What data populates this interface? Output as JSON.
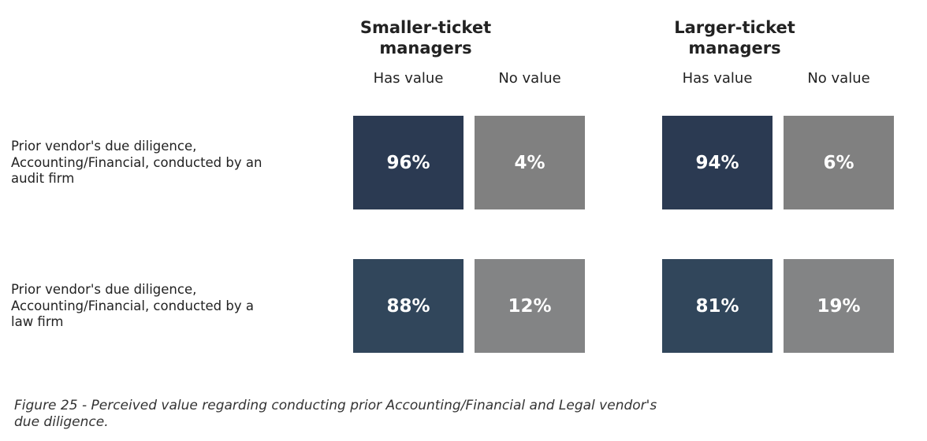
{
  "chart_data": {
    "type": "heatmap",
    "groups": [
      "Smaller-ticket managers",
      "Larger-ticket managers"
    ],
    "columns": [
      "Has value",
      "No value"
    ],
    "rows": [
      "Prior vendor's due diligence, Accounting/Financial, conducted by an audit firm",
      "Prior vendor's due diligence, Accounting/Financial, conducted by a law firm"
    ],
    "values": [
      [
        [
          96,
          4
        ],
        [
          94,
          6
        ]
      ],
      [
        [
          88,
          12
        ],
        [
          81,
          19
        ]
      ]
    ],
    "value_labels": [
      [
        [
          "96%",
          "4%"
        ],
        [
          "94%",
          "6%"
        ]
      ],
      [
        [
          "88%",
          "12%"
        ],
        [
          "81%",
          "19%"
        ]
      ]
    ],
    "unit": "%",
    "caption": "Figure 25 - Perceived value regarding conducting prior Accounting/Financial and Legal vendor's due diligence."
  },
  "colors": {
    "has_value": [
      "#2b3a52",
      "#31465b"
    ],
    "no_value": [
      "#808080",
      "#838485"
    ]
  }
}
